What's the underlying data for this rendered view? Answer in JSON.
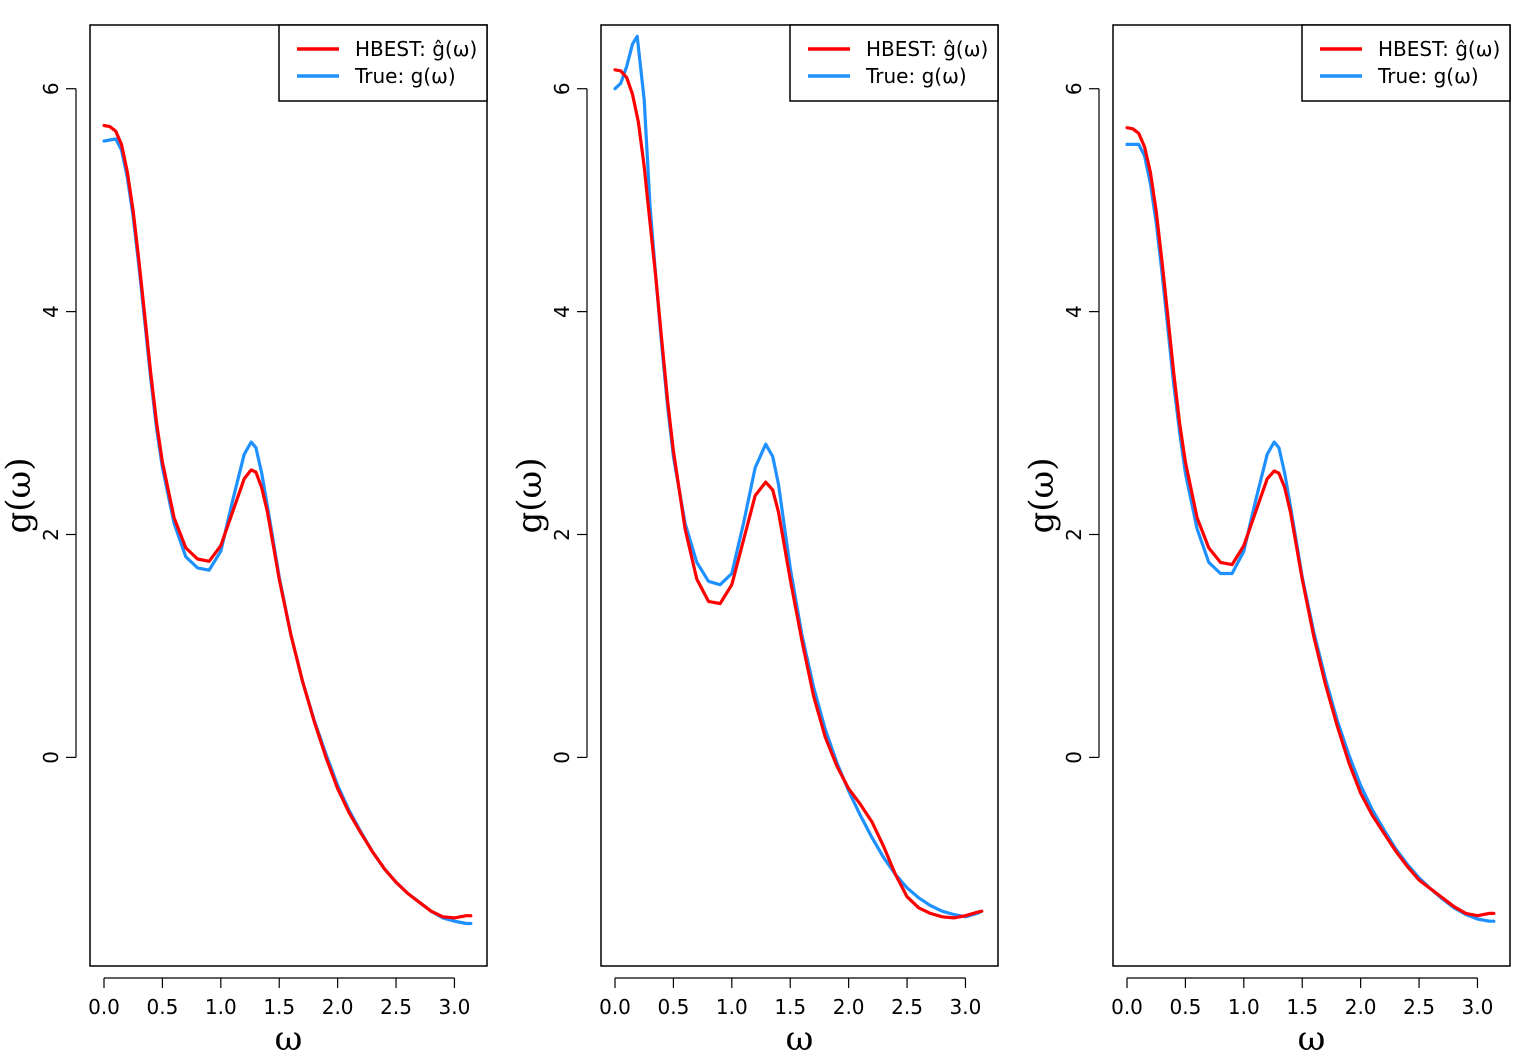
{
  "colors": {
    "hbest": "#ff0000",
    "true": "#1e90ff",
    "axis": "#000000"
  },
  "chart_data": [
    {
      "type": "line",
      "title": "",
      "xlabel": "ω",
      "ylabel": "g(ω)",
      "xlim": [
        0,
        3.1416
      ],
      "ylim": [
        -1.8,
        6.5
      ],
      "xticks": [
        0.0,
        0.5,
        1.0,
        1.5,
        2.0,
        2.5,
        3.0
      ],
      "xtick_labels": [
        "0.0",
        "0.5",
        "1.0",
        "1.5",
        "2.0",
        "2.5",
        "3.0"
      ],
      "yticks": [
        0,
        2,
        4,
        6
      ],
      "ytick_labels": [
        "0",
        "2",
        "4",
        "6"
      ],
      "legend": {
        "position": "top-right",
        "entries": [
          "HBEST: ĝ(ω)",
          "True: g(ω)"
        ]
      },
      "series": [
        {
          "name": "HBEST: ĝ(ω)",
          "color": "#ff0000",
          "x": [
            0.0,
            0.05,
            0.1,
            0.15,
            0.2,
            0.25,
            0.3,
            0.35,
            0.4,
            0.45,
            0.5,
            0.6,
            0.7,
            0.8,
            0.9,
            1.0,
            1.1,
            1.2,
            1.26,
            1.3,
            1.35,
            1.4,
            1.5,
            1.6,
            1.7,
            1.8,
            1.9,
            2.0,
            2.1,
            2.2,
            2.3,
            2.4,
            2.5,
            2.6,
            2.7,
            2.8,
            2.9,
            3.0,
            3.1,
            3.14
          ],
          "y": [
            5.67,
            5.66,
            5.62,
            5.5,
            5.25,
            4.9,
            4.45,
            3.95,
            3.45,
            3.0,
            2.65,
            2.15,
            1.88,
            1.78,
            1.76,
            1.9,
            2.2,
            2.5,
            2.58,
            2.56,
            2.42,
            2.2,
            1.6,
            1.1,
            0.68,
            0.32,
            0.0,
            -0.28,
            -0.5,
            -0.68,
            -0.85,
            -1.0,
            -1.12,
            -1.22,
            -1.3,
            -1.38,
            -1.43,
            -1.44,
            -1.42,
            -1.42
          ]
        },
        {
          "name": "True: g(ω)",
          "color": "#1e90ff",
          "x": [
            0.0,
            0.05,
            0.1,
            0.15,
            0.2,
            0.25,
            0.3,
            0.35,
            0.4,
            0.45,
            0.5,
            0.6,
            0.7,
            0.8,
            0.9,
            1.0,
            1.1,
            1.2,
            1.26,
            1.3,
            1.35,
            1.4,
            1.5,
            1.6,
            1.7,
            1.8,
            1.9,
            2.0,
            2.1,
            2.2,
            2.3,
            2.4,
            2.5,
            2.6,
            2.7,
            2.8,
            2.9,
            3.0,
            3.1,
            3.14
          ],
          "y": [
            5.53,
            5.54,
            5.55,
            5.45,
            5.2,
            4.85,
            4.4,
            3.9,
            3.4,
            2.95,
            2.6,
            2.1,
            1.8,
            1.7,
            1.68,
            1.85,
            2.3,
            2.72,
            2.83,
            2.78,
            2.55,
            2.25,
            1.62,
            1.1,
            0.68,
            0.33,
            0.03,
            -0.25,
            -0.48,
            -0.67,
            -0.85,
            -1.0,
            -1.12,
            -1.22,
            -1.3,
            -1.38,
            -1.44,
            -1.47,
            -1.49,
            -1.49
          ]
        }
      ]
    },
    {
      "type": "line",
      "title": "",
      "xlabel": "ω",
      "ylabel": "g(ω)",
      "xlim": [
        0,
        3.1416
      ],
      "ylim": [
        -1.8,
        6.5
      ],
      "xticks": [
        0.0,
        0.5,
        1.0,
        1.5,
        2.0,
        2.5,
        3.0
      ],
      "xtick_labels": [
        "0.0",
        "0.5",
        "1.0",
        "1.5",
        "2.0",
        "2.5",
        "3.0"
      ],
      "yticks": [
        0,
        2,
        4,
        6
      ],
      "ytick_labels": [
        "0",
        "2",
        "4",
        "6"
      ],
      "legend": {
        "position": "top-right",
        "entries": [
          "HBEST: ĝ(ω)",
          "True: g(ω)"
        ]
      },
      "series": [
        {
          "name": "HBEST: ĝ(ω)",
          "color": "#ff0000",
          "x": [
            0.0,
            0.05,
            0.1,
            0.15,
            0.2,
            0.25,
            0.3,
            0.35,
            0.4,
            0.45,
            0.5,
            0.6,
            0.7,
            0.8,
            0.9,
            1.0,
            1.1,
            1.2,
            1.29,
            1.35,
            1.4,
            1.5,
            1.6,
            1.7,
            1.8,
            1.9,
            2.0,
            2.1,
            2.2,
            2.3,
            2.4,
            2.5,
            2.6,
            2.7,
            2.8,
            2.9,
            3.0,
            3.1,
            3.14
          ],
          "y": [
            6.17,
            6.16,
            6.1,
            5.95,
            5.7,
            5.3,
            4.8,
            4.3,
            3.75,
            3.2,
            2.75,
            2.05,
            1.6,
            1.4,
            1.38,
            1.55,
            1.95,
            2.35,
            2.47,
            2.4,
            2.2,
            1.6,
            1.05,
            0.55,
            0.18,
            -0.08,
            -0.28,
            -0.42,
            -0.58,
            -0.8,
            -1.05,
            -1.25,
            -1.35,
            -1.4,
            -1.43,
            -1.44,
            -1.42,
            -1.39,
            -1.38
          ]
        },
        {
          "name": "True: g(ω)",
          "color": "#1e90ff",
          "x": [
            0.0,
            0.05,
            0.1,
            0.15,
            0.19,
            0.25,
            0.3,
            0.35,
            0.4,
            0.45,
            0.5,
            0.6,
            0.7,
            0.8,
            0.9,
            1.0,
            1.1,
            1.2,
            1.29,
            1.35,
            1.4,
            1.5,
            1.6,
            1.7,
            1.8,
            1.9,
            2.0,
            2.1,
            2.2,
            2.3,
            2.4,
            2.5,
            2.6,
            2.7,
            2.8,
            2.9,
            3.0,
            3.1,
            3.14
          ],
          "y": [
            6.0,
            6.05,
            6.2,
            6.4,
            6.47,
            5.9,
            4.95,
            4.3,
            3.7,
            3.15,
            2.7,
            2.1,
            1.75,
            1.58,
            1.55,
            1.65,
            2.1,
            2.6,
            2.81,
            2.7,
            2.45,
            1.7,
            1.1,
            0.63,
            0.25,
            -0.05,
            -0.3,
            -0.52,
            -0.72,
            -0.9,
            -1.05,
            -1.17,
            -1.26,
            -1.33,
            -1.38,
            -1.41,
            -1.43,
            -1.4,
            -1.38
          ]
        }
      ]
    },
    {
      "type": "line",
      "title": "",
      "xlabel": "ω",
      "ylabel": "g(ω)",
      "xlim": [
        0,
        3.1416
      ],
      "ylim": [
        -1.8,
        6.5
      ],
      "xticks": [
        0.0,
        0.5,
        1.0,
        1.5,
        2.0,
        2.5,
        3.0
      ],
      "xtick_labels": [
        "0.0",
        "0.5",
        "1.0",
        "1.5",
        "2.0",
        "2.5",
        "3.0"
      ],
      "yticks": [
        0,
        2,
        4,
        6
      ],
      "ytick_labels": [
        "0",
        "2",
        "4",
        "6"
      ],
      "legend": {
        "position": "top-right",
        "entries": [
          "HBEST: ĝ(ω)",
          "True: g(ω)"
        ]
      },
      "series": [
        {
          "name": "HBEST: ĝ(ω)",
          "color": "#ff0000",
          "x": [
            0.0,
            0.05,
            0.1,
            0.15,
            0.2,
            0.25,
            0.3,
            0.35,
            0.4,
            0.45,
            0.5,
            0.6,
            0.7,
            0.8,
            0.9,
            1.0,
            1.1,
            1.2,
            1.26,
            1.3,
            1.35,
            1.4,
            1.5,
            1.6,
            1.7,
            1.8,
            1.9,
            2.0,
            2.1,
            2.2,
            2.3,
            2.4,
            2.5,
            2.6,
            2.7,
            2.8,
            2.9,
            3.0,
            3.1,
            3.14
          ],
          "y": [
            5.65,
            5.64,
            5.6,
            5.48,
            5.25,
            4.9,
            4.45,
            3.95,
            3.45,
            3.0,
            2.65,
            2.15,
            1.88,
            1.75,
            1.73,
            1.9,
            2.2,
            2.5,
            2.57,
            2.55,
            2.42,
            2.2,
            1.6,
            1.08,
            0.65,
            0.28,
            -0.05,
            -0.32,
            -0.52,
            -0.68,
            -0.84,
            -0.98,
            -1.1,
            -1.18,
            -1.26,
            -1.34,
            -1.4,
            -1.42,
            -1.4,
            -1.4
          ]
        },
        {
          "name": "True: g(ω)",
          "color": "#1e90ff",
          "x": [
            0.0,
            0.05,
            0.1,
            0.15,
            0.2,
            0.25,
            0.3,
            0.35,
            0.4,
            0.45,
            0.5,
            0.6,
            0.7,
            0.8,
            0.9,
            1.0,
            1.1,
            1.2,
            1.26,
            1.3,
            1.35,
            1.4,
            1.5,
            1.6,
            1.7,
            1.8,
            1.9,
            2.0,
            2.1,
            2.2,
            2.3,
            2.4,
            2.5,
            2.6,
            2.7,
            2.8,
            2.9,
            3.0,
            3.1,
            3.14
          ],
          "y": [
            5.5,
            5.5,
            5.5,
            5.4,
            5.15,
            4.8,
            4.35,
            3.85,
            3.35,
            2.92,
            2.55,
            2.05,
            1.75,
            1.65,
            1.65,
            1.85,
            2.3,
            2.72,
            2.83,
            2.78,
            2.55,
            2.25,
            1.62,
            1.12,
            0.7,
            0.33,
            0.02,
            -0.25,
            -0.47,
            -0.65,
            -0.82,
            -0.96,
            -1.08,
            -1.18,
            -1.27,
            -1.35,
            -1.41,
            -1.45,
            -1.47,
            -1.47
          ]
        }
      ]
    }
  ]
}
